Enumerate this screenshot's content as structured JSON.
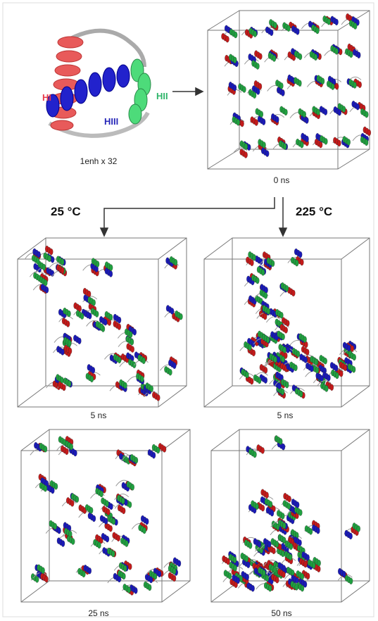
{
  "figure": {
    "helix_labels": [
      "HI",
      "HII",
      "HIII"
    ],
    "protein_caption": "1enh x 32",
    "initial_time": "0 ns",
    "conditions": [
      "25 °C",
      "225 °C"
    ],
    "panel_times": [
      "5 ns",
      "5 ns",
      "25 ns",
      "50 ns"
    ]
  }
}
